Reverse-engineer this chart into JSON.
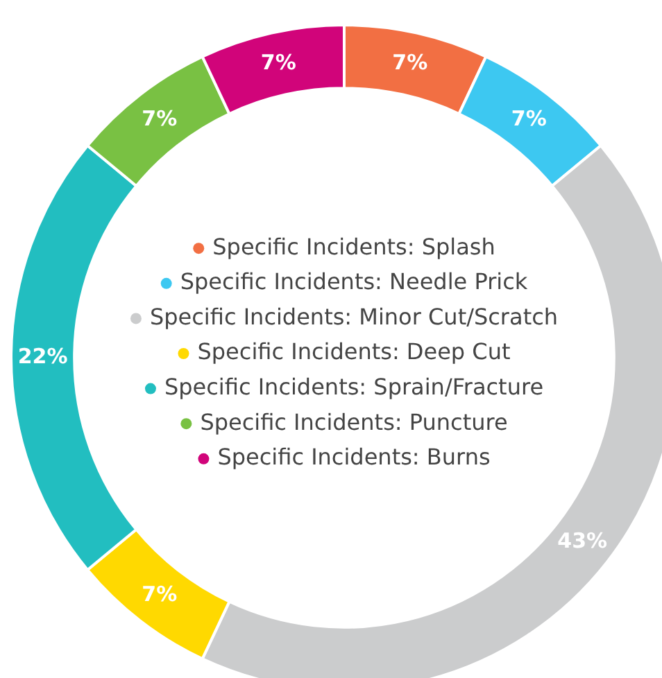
{
  "chart_data": {
    "type": "donut",
    "categories": [
      "Specific Incidents: Splash",
      "Specific Incidents: Needle Prick",
      "Specific Incidents: Minor Cut/Scratch",
      "Specific Incidents: Deep Cut",
      "Specific Incidents: Sprain/Fracture",
      "Specific Incidents: Puncture",
      "Specific Incidents: Burns"
    ],
    "values": [
      7,
      7,
      43,
      7,
      22,
      7,
      7
    ],
    "colors": [
      "#f26f43",
      "#3dc8f1",
      "#cbcccd",
      "#ffd900",
      "#22bec0",
      "#79c143",
      "#d1047a"
    ],
    "value_labels": [
      "7%",
      "7%",
      "43%",
      "7%",
      "22%",
      "7%",
      "7%"
    ],
    "legend": "center"
  }
}
